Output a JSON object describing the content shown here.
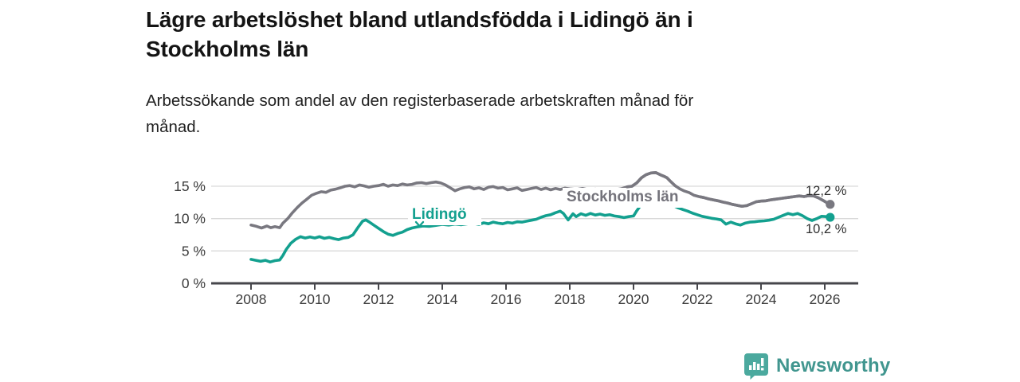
{
  "header": {
    "title_line1": "Lägre arbetslöshet bland utlandsfödda i Lidingö än i",
    "title_line2": "Stockholms län",
    "subtitle_line1": "Arbetssökande som andel av den registerbaserade arbetskraften månad för",
    "subtitle_line2": "månad."
  },
  "chart_data": {
    "type": "line",
    "title": "Lägre arbetslöshet bland utlandsfödda i Lidingö än i Stockholms län",
    "subtitle": "Arbetssökande som andel av den registerbaserade arbetskraften månad för månad.",
    "unit": "%",
    "grid": "horizontal-only",
    "legend_position": "inline-labels-on-lines",
    "x_axis": {
      "tick_labels": [
        "2008",
        "2010",
        "2012",
        "2014",
        "2016",
        "2018",
        "2020",
        "2022",
        "2024",
        "2026"
      ],
      "tick_years": [
        2008,
        2010,
        2012,
        2014,
        2016,
        2018,
        2020,
        2022,
        2024,
        2026
      ],
      "range": [
        2006.75,
        2027.05
      ]
    },
    "y_axis": {
      "ticks": [
        {
          "value": 0,
          "label": "0 %"
        },
        {
          "value": 5,
          "label": "5 %"
        },
        {
          "value": 10,
          "label": "10 %"
        },
        {
          "value": 15,
          "label": "15 %"
        }
      ],
      "range": [
        0,
        18
      ]
    },
    "series": [
      {
        "name": "Stockholms län",
        "color": "#797880",
        "end_label": "12,2 %",
        "end_value": 12.2,
        "points": [
          [
            2008.0,
            9.0
          ],
          [
            2008.17,
            8.8
          ],
          [
            2008.33,
            8.55
          ],
          [
            2008.5,
            8.85
          ],
          [
            2008.62,
            8.6
          ],
          [
            2008.75,
            8.75
          ],
          [
            2008.9,
            8.6
          ],
          [
            2009.0,
            9.3
          ],
          [
            2009.15,
            10.0
          ],
          [
            2009.3,
            10.9
          ],
          [
            2009.45,
            11.7
          ],
          [
            2009.6,
            12.4
          ],
          [
            2009.75,
            13.0
          ],
          [
            2009.9,
            13.6
          ],
          [
            2010.05,
            13.9
          ],
          [
            2010.2,
            14.15
          ],
          [
            2010.35,
            14.05
          ],
          [
            2010.5,
            14.4
          ],
          [
            2010.65,
            14.55
          ],
          [
            2010.8,
            14.75
          ],
          [
            2010.95,
            15.0
          ],
          [
            2011.1,
            15.1
          ],
          [
            2011.25,
            14.9
          ],
          [
            2011.4,
            15.2
          ],
          [
            2011.55,
            15.05
          ],
          [
            2011.7,
            14.85
          ],
          [
            2011.85,
            15.0
          ],
          [
            2012.0,
            15.1
          ],
          [
            2012.15,
            15.3
          ],
          [
            2012.3,
            15.0
          ],
          [
            2012.45,
            15.2
          ],
          [
            2012.6,
            15.1
          ],
          [
            2012.75,
            15.35
          ],
          [
            2012.9,
            15.2
          ],
          [
            2013.05,
            15.3
          ],
          [
            2013.2,
            15.5
          ],
          [
            2013.35,
            15.55
          ],
          [
            2013.5,
            15.4
          ],
          [
            2013.65,
            15.55
          ],
          [
            2013.8,
            15.65
          ],
          [
            2013.95,
            15.5
          ],
          [
            2014.1,
            15.2
          ],
          [
            2014.25,
            14.75
          ],
          [
            2014.4,
            14.3
          ],
          [
            2014.55,
            14.6
          ],
          [
            2014.7,
            14.8
          ],
          [
            2014.85,
            14.9
          ],
          [
            2015.0,
            14.6
          ],
          [
            2015.15,
            14.75
          ],
          [
            2015.3,
            14.5
          ],
          [
            2015.45,
            14.85
          ],
          [
            2015.6,
            14.95
          ],
          [
            2015.75,
            14.7
          ],
          [
            2015.9,
            14.8
          ],
          [
            2016.05,
            14.45
          ],
          [
            2016.2,
            14.6
          ],
          [
            2016.35,
            14.75
          ],
          [
            2016.5,
            14.35
          ],
          [
            2016.65,
            14.5
          ],
          [
            2016.8,
            14.65
          ],
          [
            2016.95,
            14.8
          ],
          [
            2017.1,
            14.5
          ],
          [
            2017.25,
            14.7
          ],
          [
            2017.4,
            14.45
          ],
          [
            2017.55,
            14.65
          ],
          [
            2017.7,
            14.5
          ],
          [
            2017.85,
            14.7
          ],
          [
            2018.0,
            14.6
          ],
          [
            2018.2,
            14.5
          ],
          [
            2018.4,
            14.65
          ],
          [
            2018.6,
            14.45
          ],
          [
            2018.8,
            14.55
          ],
          [
            2019.0,
            14.4
          ],
          [
            2019.2,
            14.5
          ],
          [
            2019.4,
            14.45
          ],
          [
            2019.6,
            14.6
          ],
          [
            2019.8,
            14.9
          ],
          [
            2019.95,
            15.0
          ],
          [
            2020.1,
            15.5
          ],
          [
            2020.25,
            16.3
          ],
          [
            2020.4,
            16.8
          ],
          [
            2020.55,
            17.05
          ],
          [
            2020.7,
            17.1
          ],
          [
            2020.85,
            16.75
          ],
          [
            2020.95,
            16.55
          ],
          [
            2021.05,
            16.3
          ],
          [
            2021.15,
            15.8
          ],
          [
            2021.3,
            15.1
          ],
          [
            2021.45,
            14.6
          ],
          [
            2021.6,
            14.25
          ],
          [
            2021.75,
            14.0
          ],
          [
            2021.9,
            13.6
          ],
          [
            2022.05,
            13.4
          ],
          [
            2022.2,
            13.25
          ],
          [
            2022.35,
            13.05
          ],
          [
            2022.5,
            12.9
          ],
          [
            2022.65,
            12.75
          ],
          [
            2022.8,
            12.55
          ],
          [
            2022.95,
            12.4
          ],
          [
            2023.1,
            12.2
          ],
          [
            2023.25,
            12.05
          ],
          [
            2023.4,
            11.9
          ],
          [
            2023.55,
            12.0
          ],
          [
            2023.7,
            12.3
          ],
          [
            2023.85,
            12.6
          ],
          [
            2024.0,
            12.7
          ],
          [
            2024.15,
            12.75
          ],
          [
            2024.3,
            12.9
          ],
          [
            2024.45,
            13.0
          ],
          [
            2024.6,
            13.1
          ],
          [
            2024.75,
            13.2
          ],
          [
            2024.9,
            13.3
          ],
          [
            2025.05,
            13.4
          ],
          [
            2025.2,
            13.5
          ],
          [
            2025.35,
            13.4
          ],
          [
            2025.5,
            13.55
          ],
          [
            2025.65,
            13.5
          ],
          [
            2025.8,
            13.2
          ],
          [
            2025.95,
            12.8
          ],
          [
            2026.05,
            12.5
          ],
          [
            2026.17,
            12.2
          ]
        ]
      },
      {
        "name": "Lidingö",
        "color": "#13a08f",
        "end_label": "10,2 %",
        "end_value": 10.2,
        "points": [
          [
            2008.0,
            3.7
          ],
          [
            2008.15,
            3.55
          ],
          [
            2008.3,
            3.4
          ],
          [
            2008.45,
            3.55
          ],
          [
            2008.6,
            3.3
          ],
          [
            2008.75,
            3.5
          ],
          [
            2008.9,
            3.6
          ],
          [
            2009.0,
            4.3
          ],
          [
            2009.1,
            5.2
          ],
          [
            2009.25,
            6.2
          ],
          [
            2009.4,
            6.8
          ],
          [
            2009.55,
            7.2
          ],
          [
            2009.7,
            7.0
          ],
          [
            2009.85,
            7.15
          ],
          [
            2010.0,
            7.0
          ],
          [
            2010.15,
            7.2
          ],
          [
            2010.3,
            6.95
          ],
          [
            2010.45,
            7.1
          ],
          [
            2010.6,
            6.9
          ],
          [
            2010.75,
            6.75
          ],
          [
            2010.9,
            7.0
          ],
          [
            2011.05,
            7.1
          ],
          [
            2011.2,
            7.5
          ],
          [
            2011.35,
            8.6
          ],
          [
            2011.5,
            9.6
          ],
          [
            2011.6,
            9.8
          ],
          [
            2011.7,
            9.5
          ],
          [
            2011.85,
            9.0
          ],
          [
            2012.0,
            8.5
          ],
          [
            2012.15,
            8.0
          ],
          [
            2012.3,
            7.6
          ],
          [
            2012.45,
            7.4
          ],
          [
            2012.6,
            7.7
          ],
          [
            2012.75,
            7.9
          ],
          [
            2012.9,
            8.3
          ],
          [
            2013.05,
            8.55
          ],
          [
            2013.2,
            8.7
          ],
          [
            2013.4,
            8.85
          ],
          [
            2013.6,
            8.8
          ],
          [
            2013.8,
            8.95
          ],
          [
            2014.0,
            9.1
          ],
          [
            2014.2,
            9.0
          ],
          [
            2014.4,
            9.15
          ],
          [
            2014.6,
            9.05
          ],
          [
            2014.8,
            9.2
          ],
          [
            2015.0,
            9.25
          ],
          [
            2015.15,
            9.1
          ],
          [
            2015.3,
            9.35
          ],
          [
            2015.45,
            9.2
          ],
          [
            2015.6,
            9.45
          ],
          [
            2015.75,
            9.3
          ],
          [
            2015.9,
            9.2
          ],
          [
            2016.05,
            9.4
          ],
          [
            2016.2,
            9.3
          ],
          [
            2016.35,
            9.5
          ],
          [
            2016.5,
            9.45
          ],
          [
            2016.65,
            9.6
          ],
          [
            2016.8,
            9.75
          ],
          [
            2016.95,
            9.9
          ],
          [
            2017.1,
            10.2
          ],
          [
            2017.25,
            10.45
          ],
          [
            2017.4,
            10.6
          ],
          [
            2017.55,
            10.9
          ],
          [
            2017.7,
            11.15
          ],
          [
            2017.8,
            10.8
          ],
          [
            2017.95,
            9.8
          ],
          [
            2018.1,
            10.75
          ],
          [
            2018.2,
            10.3
          ],
          [
            2018.35,
            10.75
          ],
          [
            2018.5,
            10.5
          ],
          [
            2018.65,
            10.8
          ],
          [
            2018.8,
            10.55
          ],
          [
            2018.95,
            10.7
          ],
          [
            2019.1,
            10.5
          ],
          [
            2019.25,
            10.6
          ],
          [
            2019.4,
            10.4
          ],
          [
            2019.55,
            10.3
          ],
          [
            2019.7,
            10.15
          ],
          [
            2019.85,
            10.3
          ],
          [
            2020.0,
            10.4
          ],
          [
            2020.1,
            11.2
          ],
          [
            2020.25,
            12.2
          ],
          [
            2020.4,
            12.55
          ],
          [
            2020.6,
            12.65
          ],
          [
            2020.8,
            12.6
          ],
          [
            2021.0,
            12.5
          ],
          [
            2021.1,
            12.4
          ],
          [
            2021.25,
            12.0
          ],
          [
            2021.4,
            11.65
          ],
          [
            2021.55,
            11.4
          ],
          [
            2021.7,
            11.15
          ],
          [
            2021.85,
            10.85
          ],
          [
            2022.0,
            10.6
          ],
          [
            2022.15,
            10.35
          ],
          [
            2022.3,
            10.2
          ],
          [
            2022.45,
            10.05
          ],
          [
            2022.6,
            9.95
          ],
          [
            2022.75,
            9.8
          ],
          [
            2022.9,
            9.15
          ],
          [
            2023.05,
            9.45
          ],
          [
            2023.2,
            9.2
          ],
          [
            2023.35,
            9.0
          ],
          [
            2023.5,
            9.3
          ],
          [
            2023.65,
            9.45
          ],
          [
            2023.8,
            9.5
          ],
          [
            2023.95,
            9.6
          ],
          [
            2024.1,
            9.65
          ],
          [
            2024.25,
            9.75
          ],
          [
            2024.4,
            9.9
          ],
          [
            2024.55,
            10.2
          ],
          [
            2024.7,
            10.5
          ],
          [
            2024.85,
            10.8
          ],
          [
            2025.0,
            10.6
          ],
          [
            2025.15,
            10.8
          ],
          [
            2025.3,
            10.45
          ],
          [
            2025.45,
            10.0
          ],
          [
            2025.6,
            9.7
          ],
          [
            2025.75,
            10.0
          ],
          [
            2025.9,
            10.35
          ],
          [
            2026.05,
            10.3
          ],
          [
            2026.17,
            10.2
          ]
        ]
      }
    ],
    "annotations": {
      "series_label_1": "Stockholms län",
      "series_label_2": "Lidingö",
      "end_value_1": "12,2 %",
      "end_value_2": "10,2 %"
    },
    "colors": {
      "grid": "#d9d9d9",
      "axis": "#46464b",
      "tick_text": "#3c3c3c",
      "stockholm_line": "#797880",
      "lidingo_line": "#13a08f"
    }
  },
  "branding": {
    "logo_text": "Newsworthy",
    "logo_icon": "bar-chart-speech-bubble"
  }
}
